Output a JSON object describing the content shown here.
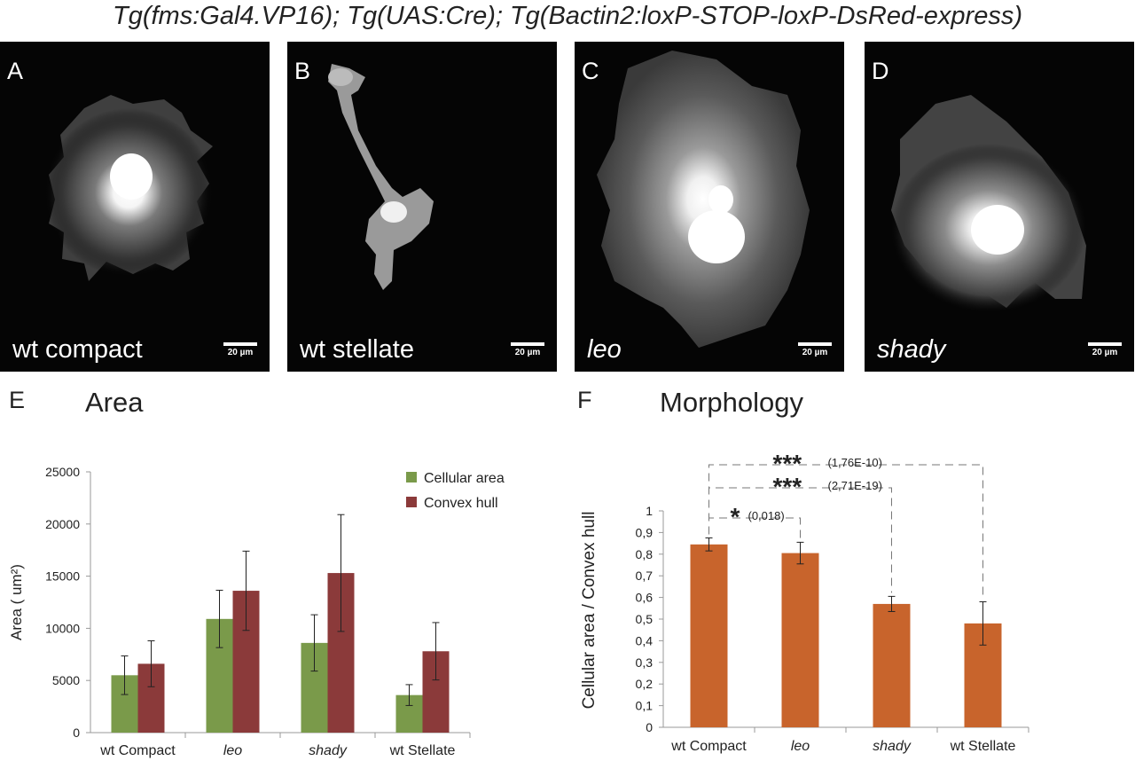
{
  "figure_title": "Tg(fms:Gal4.VP16); Tg(UAS:Cre); Tg(Bactin2:loxP-STOP-loxP-DsRed-express)",
  "panels": [
    {
      "letter": "A",
      "caption": "wt compact",
      "scale": "20 µm",
      "italic": false
    },
    {
      "letter": "B",
      "caption": "wt stellate",
      "scale": "20 µm",
      "italic": false
    },
    {
      "letter": "C",
      "caption": "leo",
      "scale": "20 µm",
      "italic": true
    },
    {
      "letter": "D",
      "caption": "shady",
      "scale": "20 µm",
      "italic": true
    }
  ],
  "chart_E": {
    "letter": "E",
    "title": "Area"
  },
  "chart_F": {
    "letter": "F",
    "title": "Morphology"
  },
  "chart_data": [
    {
      "type": "bar",
      "title": "Area",
      "ylabel": "Area ( um²)",
      "ylim": [
        0,
        25000
      ],
      "yticks": [
        "0",
        "5000",
        "10000",
        "15000",
        "20000",
        "25000"
      ],
      "categories": [
        "wt Compact",
        "leo",
        "shady",
        "wt  Stellate"
      ],
      "italic_categories": [
        false,
        true,
        true,
        false
      ],
      "legend_position": "top-right",
      "series": [
        {
          "name": "Cellular area",
          "color": "#7a9a4a",
          "values": [
            5500,
            10900,
            8600,
            3600
          ],
          "errors": [
            1850,
            2750,
            2700,
            1000
          ]
        },
        {
          "name": "Convex hull",
          "color": "#8b3a3a",
          "values": [
            6600,
            13600,
            15300,
            7800
          ],
          "errors": [
            2200,
            3800,
            5600,
            2750
          ]
        }
      ]
    },
    {
      "type": "bar",
      "title": "Morphology",
      "ylabel": "Cellular area / Convex hull",
      "ylim": [
        0,
        1
      ],
      "yticks": [
        "0",
        "0,1",
        "0,2",
        "0,3",
        "0,4",
        "0,5",
        "0,6",
        "0,7",
        "0,8",
        "0,9",
        "1"
      ],
      "categories": [
        "wt Compact",
        "leo",
        "shady",
        "wt  Stellate"
      ],
      "italic_categories": [
        false,
        true,
        true,
        false
      ],
      "series": [
        {
          "color": "#c8642c",
          "values": [
            0.845,
            0.805,
            0.57,
            0.48
          ],
          "errors": [
            0.03,
            0.05,
            0.035,
            0.1
          ]
        }
      ],
      "significance": [
        {
          "from": 0,
          "to": 1,
          "stars": "*",
          "p": "(0,018)"
        },
        {
          "from": 0,
          "to": 2,
          "stars": "***",
          "p": "(2,71E-19)"
        },
        {
          "from": 0,
          "to": 3,
          "stars": "***",
          "p": "(1,76E-10)"
        }
      ]
    }
  ]
}
